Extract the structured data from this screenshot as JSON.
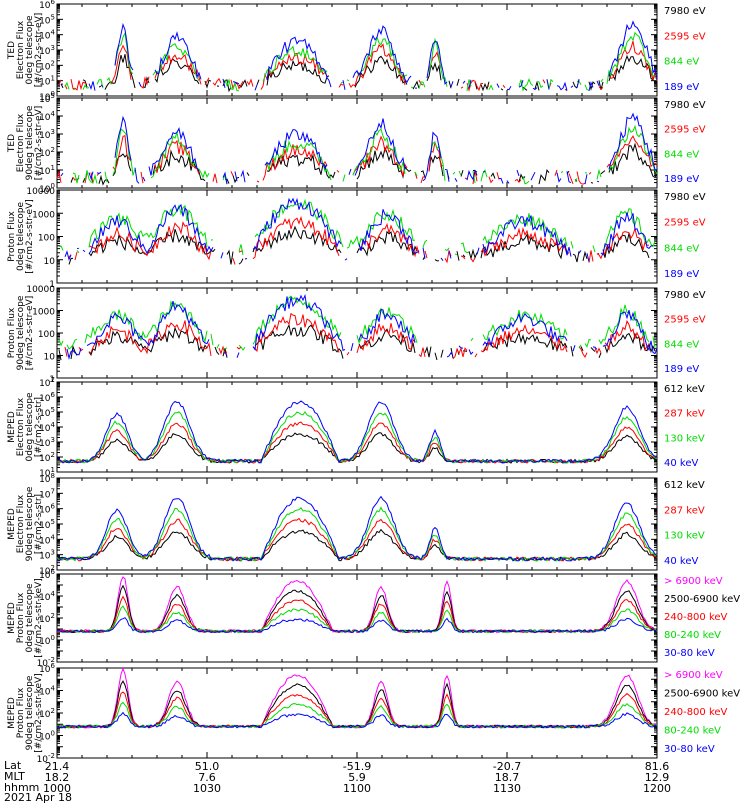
{
  "colors": {
    "black": "#000000",
    "red": "#ff0000",
    "green": "#00dd00",
    "blue": "#0000ff",
    "magenta": "#ff00ff"
  },
  "chart_data": [
    {
      "type": "line",
      "ylabel_lines": [
        "TED",
        "Electron Flux",
        "0deg telescope",
        "[#/cm2-s-str-eV]"
      ],
      "ylog": true,
      "ylim_exp": [
        0,
        6
      ],
      "tick_labels": [
        "10^0",
        "10^1",
        "10^2",
        "10^3",
        "10^4",
        "10^5",
        "10^6"
      ],
      "series": [
        {
          "name": "7980 eV",
          "color": "black",
          "profile": "ted"
        },
        {
          "name": "2595 eV",
          "color": "red",
          "profile": "ted"
        },
        {
          "name": "844 eV",
          "color": "green",
          "profile": "ted"
        },
        {
          "name": "189 eV",
          "color": "blue",
          "profile": "ted"
        }
      ]
    },
    {
      "type": "line",
      "ylabel_lines": [
        "TED",
        "Electron Flux",
        "90deg telescope",
        "[#/cm2-s-str-eV]"
      ],
      "ylog": true,
      "ylim_exp": [
        0,
        5
      ],
      "tick_labels": [
        "10^0",
        "10^1",
        "10^2",
        "10^3",
        "10^4",
        "10^5"
      ],
      "series": [
        {
          "name": "7980 eV",
          "color": "black"
        },
        {
          "name": "2595 eV",
          "color": "red"
        },
        {
          "name": "844 eV",
          "color": "green"
        },
        {
          "name": "189 eV",
          "color": "blue"
        }
      ]
    },
    {
      "type": "line",
      "ylabel_lines": [
        "Proton Flux",
        "0deg telescope",
        "[#/cm2-s-str-eV]"
      ],
      "ylog": true,
      "ylim_exp": [
        0,
        4
      ],
      "tick_labels": [
        "1",
        "10",
        "100",
        "1000",
        "10000"
      ],
      "series": [
        {
          "name": "7980 eV",
          "color": "black"
        },
        {
          "name": "2595 eV",
          "color": "red"
        },
        {
          "name": "844 eV",
          "color": "green"
        },
        {
          "name": "189 eV",
          "color": "blue"
        }
      ]
    },
    {
      "type": "line",
      "ylabel_lines": [
        "Proton Flux",
        "90deg telescope",
        "[#/cm2-s-str-eV]"
      ],
      "ylog": true,
      "ylim_exp": [
        0,
        4
      ],
      "tick_labels": [
        "1",
        "10",
        "100",
        "1000",
        "10000"
      ],
      "series": [
        {
          "name": "7980 eV",
          "color": "black"
        },
        {
          "name": "2595 eV",
          "color": "red"
        },
        {
          "name": "844 eV",
          "color": "green"
        },
        {
          "name": "189 eV",
          "color": "blue"
        }
      ]
    },
    {
      "type": "line",
      "ylabel_lines": [
        "MEPED",
        "Electron Flux",
        "0deg telescope",
        "[#/cm2-s-str]"
      ],
      "ylog": true,
      "ylim_exp": [
        1,
        7
      ],
      "tick_labels": [
        "10^1",
        "10^2",
        "10^3",
        "10^4",
        "10^5",
        "10^6",
        "10^7"
      ],
      "series": [
        {
          "name": "612 keV",
          "color": "black"
        },
        {
          "name": "287 keV",
          "color": "red"
        },
        {
          "name": "130 keV",
          "color": "green"
        },
        {
          "name": "40 keV",
          "color": "blue"
        }
      ]
    },
    {
      "type": "line",
      "ylabel_lines": [
        "MEPED",
        "Electron Flux",
        "90deg telescope",
        "[#/cm2-s-str]"
      ],
      "ylog": true,
      "ylim_exp": [
        2,
        8
      ],
      "tick_labels": [
        "10^2",
        "10^3",
        "10^4",
        "10^5",
        "10^6",
        "10^7",
        "10^8"
      ],
      "series": [
        {
          "name": "612 keV",
          "color": "black"
        },
        {
          "name": "287 keV",
          "color": "red"
        },
        {
          "name": "130 keV",
          "color": "green"
        },
        {
          "name": "40 keV",
          "color": "blue"
        }
      ]
    },
    {
      "type": "line",
      "ylabel_lines": [
        "MEPED",
        "Proton Flux",
        "0deg telescope",
        "[#/cm2-s-str-keV]"
      ],
      "ylog": true,
      "ylim_exp": [
        -2,
        6
      ],
      "tick_labels": [
        "10^-2",
        "",
        "10^0",
        "",
        "10^2",
        "",
        "10^4",
        "",
        "10^6"
      ],
      "series": [
        {
          "name": "> 6900 keV",
          "color": "magenta"
        },
        {
          "name": "2500-6900 keV",
          "color": "black"
        },
        {
          "name": "240-800 keV",
          "color": "red"
        },
        {
          "name": "80-240 keV",
          "color": "green"
        },
        {
          "name": "30-80 keV",
          "color": "blue"
        }
      ]
    },
    {
      "type": "line",
      "ylabel_lines": [
        "MEPED",
        "Proton Flux",
        "90deg telescope",
        "[#/cm2-s-str-keV]"
      ],
      "ylog": true,
      "ylim_exp": [
        -2,
        6
      ],
      "tick_labels": [
        "10^-2",
        "",
        "10^0",
        "",
        "10^2",
        "",
        "10^4",
        "",
        "10^6"
      ],
      "series": [
        {
          "name": "> 6900 keV",
          "color": "magenta"
        },
        {
          "name": "2500-6900 keV",
          "color": "black"
        },
        {
          "name": "240-800 keV",
          "color": "red"
        },
        {
          "name": "80-240 keV",
          "color": "green"
        },
        {
          "name": "30-80 keV",
          "color": "blue"
        }
      ]
    }
  ],
  "time_axis": {
    "row_labels": [
      "Lat",
      "MLT",
      "hhmm"
    ],
    "ticks": [
      {
        "lat": "21.4",
        "mlt": "18.2",
        "hhmm": "1000"
      },
      {
        "lat": "51.0",
        "mlt": "7.6",
        "hhmm": "1030"
      },
      {
        "lat": "-51.9",
        "mlt": "5.9",
        "hhmm": "1100"
      },
      {
        "lat": "-20.7",
        "mlt": "18.7",
        "hhmm": "1130"
      },
      {
        "lat": "81.6",
        "mlt": "12.9",
        "hhmm": "1200"
      }
    ],
    "date": "2021 Apr 18"
  }
}
